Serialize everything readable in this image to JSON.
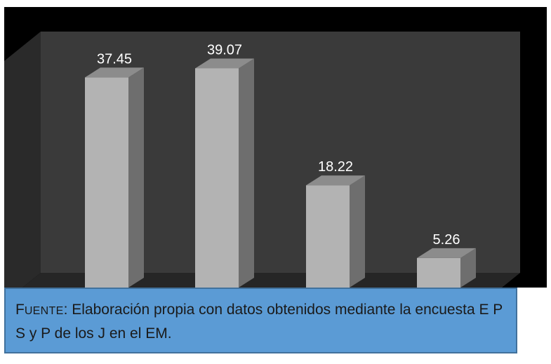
{
  "chart_data": {
    "type": "bar",
    "categories": [
      "",
      "",
      "",
      ""
    ],
    "values": [
      37.45,
      39.07,
      18.22,
      5.26
    ],
    "value_labels": [
      "37.45",
      "39.07",
      "18.22",
      "5.26"
    ],
    "title": "",
    "xlabel": "",
    "ylabel": "",
    "ylim": [
      0,
      45
    ],
    "grid": false,
    "legend": "none",
    "style": "3d-column"
  },
  "colors": {
    "background": "#000000",
    "back_wall": "#3a3a3a",
    "side_wall": "#2a2a2a",
    "floor": "#262626",
    "bar_front": "#b3b3b3",
    "bar_top": "#8c8c8c",
    "bar_side": "#6e6e6e",
    "caption_bg": "#5b9bd5"
  },
  "caption": {
    "source_first_letter": "F",
    "source_rest": "uente",
    "text": ": Elaboración propia con datos obtenidos mediante  la encuesta  E P S y P de los J en el EM."
  }
}
